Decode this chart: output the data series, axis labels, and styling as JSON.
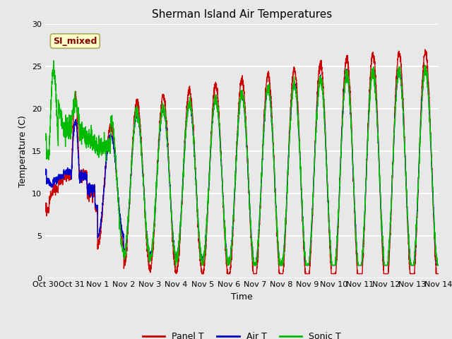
{
  "title": "Sherman Island Air Temperatures",
  "xlabel": "Time",
  "ylabel": "Temperature (C)",
  "ylim": [
    0,
    30
  ],
  "background_color": "#e8e8e8",
  "plot_bg_color": "#e8e8e8",
  "grid_color": "#ffffff",
  "colors": {
    "panel": "#cc0000",
    "air": "#0000cc",
    "sonic": "#00bb00"
  },
  "legend_labels": [
    "Panel T",
    "Air T",
    "Sonic T"
  ],
  "annotation_text": "SI_mixed",
  "annotation_bg": "#ffffcc",
  "annotation_fg": "#880000",
  "x_tick_labels": [
    "Oct 30",
    "Oct 31",
    "Nov 1",
    "Nov 2",
    "Nov 3",
    "Nov 4",
    "Nov 5",
    "Nov 6",
    "Nov 7",
    "Nov 8",
    "Nov 9",
    "Nov 10",
    "Nov 11",
    "Nov 12",
    "Nov 13",
    "Nov 14"
  ],
  "title_fontsize": 11,
  "axis_fontsize": 9,
  "tick_fontsize": 8
}
